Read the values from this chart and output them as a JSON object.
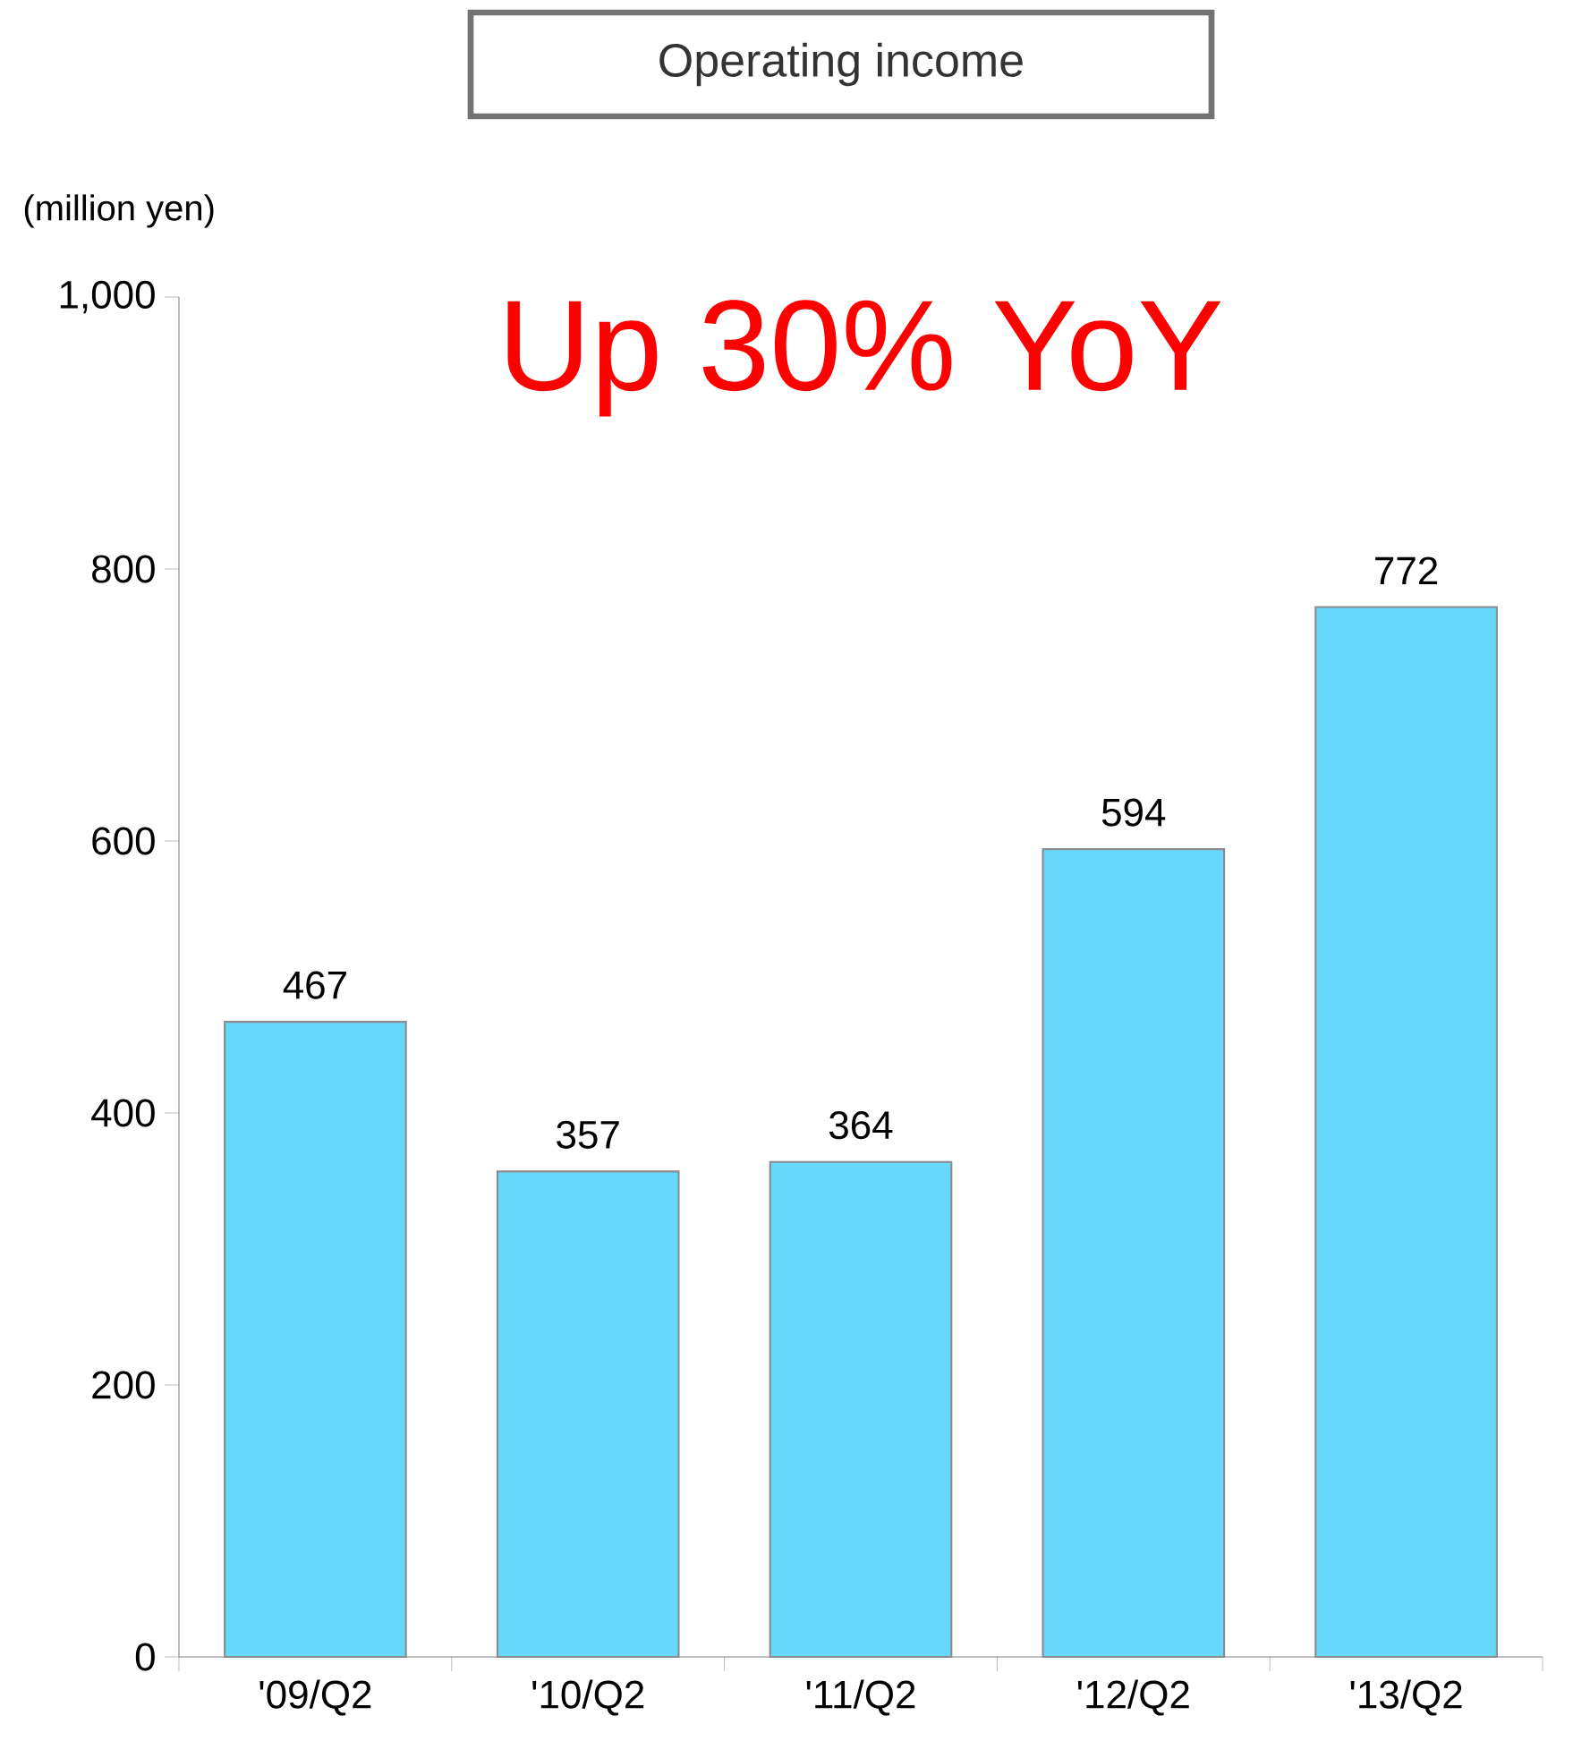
{
  "chart_data": {
    "type": "bar",
    "title": "Operating income",
    "ylabel": "(million yen)",
    "categories": [
      "'09/Q2",
      "'10/Q2",
      "'11/Q2",
      "'12/Q2",
      "'13/Q2"
    ],
    "values": [
      467,
      357,
      364,
      594,
      772
    ],
    "color": "#66d9fa",
    "ylim": [
      0,
      1000
    ],
    "yticks": [
      0,
      200,
      400,
      600,
      800,
      {
        "value": 1000,
        "label": "1,000"
      }
    ],
    "data_labels": true,
    "grid": false,
    "annotations": [
      "Up 30% YoY"
    ]
  }
}
